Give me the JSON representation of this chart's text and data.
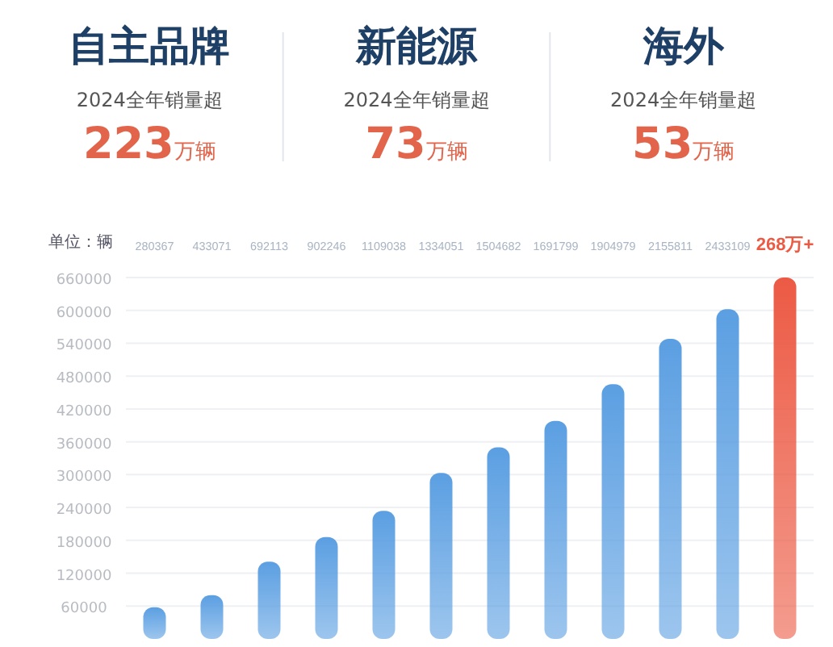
{
  "chart_data": [
    {
      "type": "other",
      "annotations": [
        "自主品牌",
        "2024全年销量超",
        "223万辆",
        "新能源",
        "2024全年销量超",
        "73万辆",
        "海外",
        "2024全年销量超",
        "53万辆"
      ]
    },
    {
      "type": "bar",
      "ylabel": "单位：辆",
      "categories": [
        "280367",
        "433071",
        "692113",
        "902246",
        "1109038",
        "1334051",
        "1504682",
        "1691799",
        "1904979",
        "2155811",
        "2433109",
        "268万+"
      ],
      "values": [
        58000,
        80000,
        141000,
        186000,
        234000,
        303000,
        350000,
        398000,
        465000,
        548000,
        602000,
        660000
      ],
      "colors": [
        "#5b9fe2",
        "#5b9fe2",
        "#5b9fe2",
        "#5b9fe2",
        "#5b9fe2",
        "#5b9fe2",
        "#5b9fe2",
        "#5b9fe2",
        "#5b9fe2",
        "#5b9fe2",
        "#5b9fe2",
        "#ec5a44"
      ],
      "ylim": [
        0,
        660000
      ],
      "yticks": [
        60000,
        120000,
        180000,
        240000,
        300000,
        360000,
        420000,
        480000,
        540000,
        600000,
        660000
      ],
      "grid": "y"
    }
  ]
}
